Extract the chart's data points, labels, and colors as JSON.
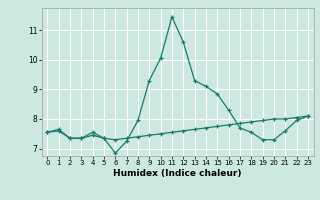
{
  "title": "",
  "xlabel": "Humidex (Indice chaleur)",
  "ylabel": "",
  "background_color": "#cce8e0",
  "grid_color": "#ffffff",
  "line_color": "#1a7a6a",
  "xlim": [
    -0.5,
    23.5
  ],
  "ylim": [
    6.75,
    11.75
  ],
  "xticks": [
    0,
    1,
    2,
    3,
    4,
    5,
    6,
    7,
    8,
    9,
    10,
    11,
    12,
    13,
    14,
    15,
    16,
    17,
    18,
    19,
    20,
    21,
    22,
    23
  ],
  "yticks": [
    7,
    8,
    9,
    10,
    11
  ],
  "line1_x": [
    0,
    1,
    2,
    3,
    4,
    5,
    6,
    7,
    8,
    9,
    10,
    11,
    12,
    13,
    14,
    15,
    16,
    17,
    18,
    19,
    20,
    21,
    22,
    23
  ],
  "line1_y": [
    7.55,
    7.65,
    7.35,
    7.35,
    7.55,
    7.35,
    6.85,
    7.25,
    7.95,
    9.3,
    10.05,
    11.45,
    10.6,
    9.3,
    9.1,
    8.85,
    8.3,
    7.7,
    7.55,
    7.3,
    7.3,
    7.6,
    7.95,
    8.1
  ],
  "line2_x": [
    0,
    1,
    2,
    3,
    4,
    5,
    6,
    7,
    8,
    9,
    10,
    11,
    12,
    13,
    14,
    15,
    16,
    17,
    18,
    19,
    20,
    21,
    22,
    23
  ],
  "line2_y": [
    7.55,
    7.6,
    7.35,
    7.35,
    7.45,
    7.35,
    7.3,
    7.35,
    7.4,
    7.45,
    7.5,
    7.55,
    7.6,
    7.65,
    7.7,
    7.75,
    7.8,
    7.85,
    7.9,
    7.95,
    8.0,
    8.0,
    8.05,
    8.1
  ],
  "figsize": [
    3.2,
    2.0
  ],
  "dpi": 100
}
